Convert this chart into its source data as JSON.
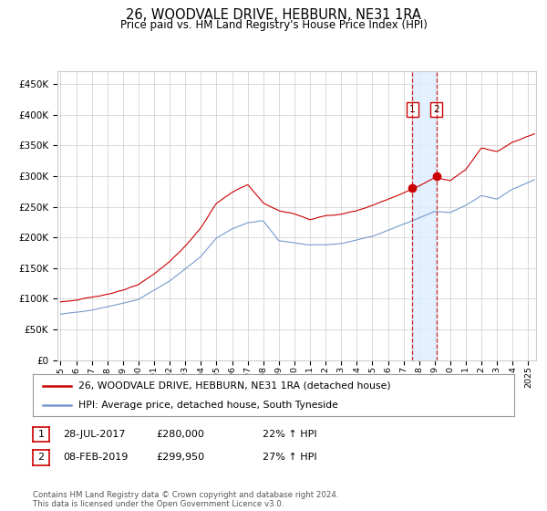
{
  "title": "26, WOODVALE DRIVE, HEBBURN, NE31 1RA",
  "subtitle": "Price paid vs. HM Land Registry's House Price Index (HPI)",
  "footnote": "Contains HM Land Registry data © Crown copyright and database right 2024.\nThis data is licensed under the Open Government Licence v3.0.",
  "legend_line1": "26, WOODVALE DRIVE, HEBBURN, NE31 1RA (detached house)",
  "legend_line2": "HPI: Average price, detached house, South Tyneside",
  "transaction1_date": "28-JUL-2017",
  "transaction1_price": "£280,000",
  "transaction1_hpi": "22% ↑ HPI",
  "transaction2_date": "08-FEB-2019",
  "transaction2_price": "£299,950",
  "transaction2_hpi": "27% ↑ HPI",
  "red_line_color": "#cc0000",
  "blue_line_color": "#7799cc",
  "dashed_line_color": "#cc0000",
  "highlight_color": "#ddeeff",
  "dot_color": "#cc0000",
  "background_color": "#ffffff",
  "grid_color": "#cccccc",
  "ylim": [
    0,
    470000
  ],
  "yticks": [
    0,
    50000,
    100000,
    150000,
    200000,
    250000,
    300000,
    350000,
    400000,
    450000
  ],
  "ytick_labels": [
    "£0",
    "£50K",
    "£100K",
    "£150K",
    "£200K",
    "£250K",
    "£300K",
    "£350K",
    "£400K",
    "£450K"
  ],
  "xlim_start": 1994.8,
  "xlim_end": 2025.5,
  "transaction1_x": 2017.57,
  "transaction1_y": 280000,
  "transaction2_x": 2019.1,
  "transaction2_y": 299950
}
